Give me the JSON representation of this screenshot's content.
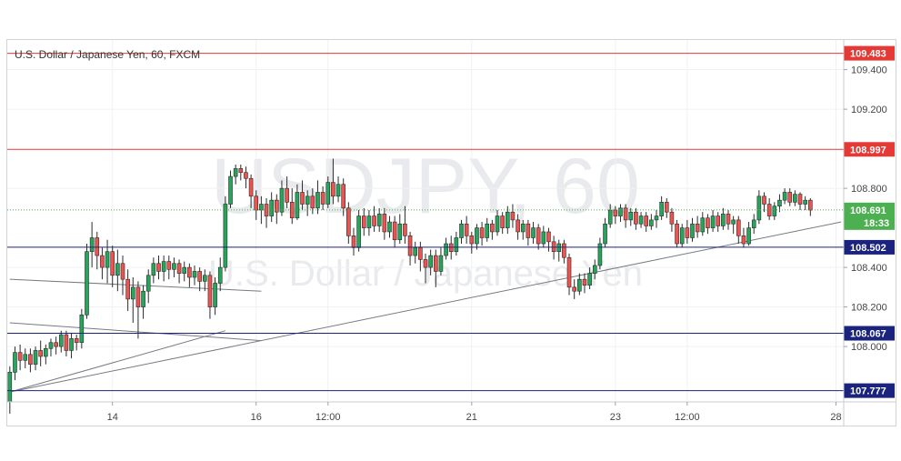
{
  "chart_data": {
    "type": "candlestick",
    "title": "U.S. Dollar / Japanese Yen, 60, FXCM",
    "watermark": {
      "symbol": "USDJPY, 60",
      "name": "U.S. Dollar / Japanese Yen"
    },
    "ylim": [
      107.72,
      109.55
    ],
    "y_ticks": [
      {
        "value": 108.0,
        "label": "108.000"
      },
      {
        "value": 108.2,
        "label": "108.200"
      },
      {
        "value": 108.4,
        "label": "108.400"
      },
      {
        "value": 108.8,
        "label": "108.800"
      },
      {
        "value": 109.2,
        "label": "109.200"
      },
      {
        "value": 109.4,
        "label": "109.400"
      }
    ],
    "x_ticks": [
      {
        "label": "14",
        "slot": 20
      },
      {
        "label": "16",
        "slot": 48
      },
      {
        "label": "12:00",
        "slot": 62
      },
      {
        "label": "21",
        "slot": 90
      },
      {
        "label": "23",
        "slot": 118
      },
      {
        "label": "12:00",
        "slot": 132
      },
      {
        "label": "28",
        "slot": 161
      }
    ],
    "slot_count": 163,
    "horizontal_levels": [
      {
        "value": 109.483,
        "label": "109.483",
        "color": "#e53935"
      },
      {
        "value": 108.997,
        "label": "108.997",
        "color": "#e53935"
      },
      {
        "value": 108.502,
        "label": "108.502",
        "color": "#1a237e"
      },
      {
        "value": 108.067,
        "label": "108.067",
        "color": "#1a237e"
      },
      {
        "value": 107.777,
        "label": "107.777",
        "color": "#1a237e"
      }
    ],
    "current_price": {
      "value": 108.691,
      "label": "108.691",
      "countdown": "18:33",
      "color": "#4caf50"
    },
    "trend_lines": [
      {
        "from": {
          "slot": 0,
          "value": 107.77
        },
        "to": {
          "slot": 162,
          "value": 108.63
        }
      },
      {
        "from": {
          "slot": 0,
          "value": 108.34
        },
        "to": {
          "slot": 49,
          "value": 108.28
        }
      },
      {
        "from": {
          "slot": 0,
          "value": 108.12
        },
        "to": {
          "slot": 49,
          "value": 108.03
        }
      },
      {
        "from": {
          "slot": 0,
          "value": 107.77
        },
        "to": {
          "slot": 42,
          "value": 108.08
        }
      }
    ],
    "candles": [
      [
        107.72,
        107.87,
        107.66,
        107.9
      ],
      [
        107.87,
        107.97,
        107.83,
        108.0
      ],
      [
        107.97,
        107.93,
        107.88,
        108.01
      ],
      [
        107.93,
        107.96,
        107.89,
        107.99
      ],
      [
        107.96,
        107.91,
        107.87,
        107.99
      ],
      [
        107.91,
        107.98,
        107.88,
        108.0
      ],
      [
        107.98,
        107.95,
        107.9,
        108.03
      ],
      [
        107.95,
        107.99,
        107.91,
        108.01
      ],
      [
        107.99,
        108.02,
        107.95,
        108.04
      ],
      [
        108.02,
        108.0,
        107.96,
        108.05
      ],
      [
        108.0,
        108.06,
        107.97,
        108.08
      ],
      [
        108.06,
        107.98,
        107.95,
        108.08
      ],
      [
        107.98,
        108.04,
        107.94,
        108.07
      ],
      [
        108.04,
        108.02,
        107.98,
        108.06
      ],
      [
        108.02,
        108.16,
        107.99,
        108.19
      ],
      [
        108.16,
        108.48,
        108.14,
        108.52
      ],
      [
        108.48,
        108.55,
        108.4,
        108.63
      ],
      [
        108.55,
        108.46,
        108.39,
        108.58
      ],
      [
        108.46,
        108.4,
        108.34,
        108.5
      ],
      [
        108.4,
        108.48,
        108.32,
        108.54
      ],
      [
        108.48,
        108.36,
        108.3,
        108.51
      ],
      [
        108.36,
        108.42,
        108.28,
        108.49
      ],
      [
        108.42,
        108.34,
        108.26,
        108.46
      ],
      [
        108.34,
        108.24,
        108.18,
        108.39
      ],
      [
        108.24,
        108.3,
        108.12,
        108.35
      ],
      [
        108.3,
        108.2,
        108.04,
        108.33
      ],
      [
        108.2,
        108.28,
        108.14,
        108.31
      ],
      [
        108.28,
        108.36,
        108.22,
        108.39
      ],
      [
        108.36,
        108.42,
        108.32,
        108.45
      ],
      [
        108.42,
        108.38,
        108.34,
        108.46
      ],
      [
        108.38,
        108.43,
        108.33,
        108.46
      ],
      [
        108.43,
        108.39,
        108.34,
        108.46
      ],
      [
        108.39,
        108.42,
        108.35,
        108.45
      ],
      [
        108.42,
        108.37,
        108.32,
        108.44
      ],
      [
        108.37,
        108.4,
        108.33,
        108.43
      ],
      [
        108.4,
        108.35,
        108.3,
        108.42
      ],
      [
        108.35,
        108.38,
        108.31,
        108.41
      ],
      [
        108.38,
        108.33,
        108.28,
        108.4
      ],
      [
        108.33,
        108.36,
        108.28,
        108.39
      ],
      [
        108.36,
        108.2,
        108.14,
        108.38
      ],
      [
        108.2,
        108.32,
        108.16,
        108.35
      ],
      [
        108.32,
        108.4,
        108.28,
        108.45
      ],
      [
        108.4,
        108.72,
        108.38,
        108.76
      ],
      [
        108.72,
        108.86,
        108.7,
        108.89
      ],
      [
        108.86,
        108.9,
        108.82,
        108.92
      ],
      [
        108.9,
        108.88,
        108.84,
        108.92
      ],
      [
        108.88,
        108.85,
        108.8,
        108.91
      ],
      [
        108.85,
        108.76,
        108.7,
        108.87
      ],
      [
        108.76,
        108.69,
        108.64,
        108.79
      ],
      [
        108.69,
        108.72,
        108.62,
        108.76
      ],
      [
        108.72,
        108.66,
        108.6,
        108.75
      ],
      [
        108.66,
        108.74,
        108.63,
        108.78
      ],
      [
        108.74,
        108.68,
        108.62,
        108.77
      ],
      [
        108.68,
        108.8,
        108.66,
        108.84
      ],
      [
        108.8,
        108.73,
        108.7,
        108.86
      ],
      [
        108.73,
        108.65,
        108.62,
        108.8
      ],
      [
        108.65,
        108.78,
        108.64,
        108.82
      ],
      [
        108.78,
        108.72,
        108.69,
        108.84
      ],
      [
        108.72,
        108.76,
        108.66,
        108.79
      ],
      [
        108.76,
        108.7,
        108.67,
        108.8
      ],
      [
        108.7,
        108.78,
        108.67,
        108.84
      ],
      [
        108.78,
        108.72,
        108.69,
        108.81
      ],
      [
        108.72,
        108.83,
        108.7,
        108.86
      ],
      [
        108.83,
        108.76,
        108.72,
        108.95
      ],
      [
        108.76,
        108.82,
        108.73,
        108.86
      ],
      [
        108.82,
        108.7,
        108.66,
        108.85
      ],
      [
        108.7,
        108.56,
        108.52,
        108.73
      ],
      [
        108.56,
        108.5,
        108.46,
        108.6
      ],
      [
        108.5,
        108.66,
        108.48,
        108.69
      ],
      [
        108.66,
        108.6,
        108.56,
        108.7
      ],
      [
        108.6,
        108.66,
        108.56,
        108.69
      ],
      [
        108.66,
        108.61,
        108.58,
        108.71
      ],
      [
        108.61,
        108.67,
        108.58,
        108.7
      ],
      [
        108.67,
        108.58,
        108.54,
        108.7
      ],
      [
        108.58,
        108.63,
        108.55,
        108.66
      ],
      [
        108.63,
        108.54,
        108.5,
        108.66
      ],
      [
        108.54,
        108.62,
        108.52,
        108.67
      ],
      [
        108.62,
        108.56,
        108.52,
        108.71
      ],
      [
        108.56,
        108.46,
        108.41,
        108.58
      ],
      [
        108.46,
        108.5,
        108.42,
        108.53
      ],
      [
        108.5,
        108.44,
        108.38,
        108.53
      ],
      [
        108.44,
        108.4,
        108.32,
        108.47
      ],
      [
        108.4,
        108.46,
        108.36,
        108.49
      ],
      [
        108.46,
        108.38,
        108.3,
        108.49
      ],
      [
        108.38,
        108.46,
        108.36,
        108.5
      ],
      [
        108.46,
        108.52,
        108.44,
        108.55
      ],
      [
        108.52,
        108.48,
        108.44,
        108.56
      ],
      [
        108.48,
        108.55,
        108.46,
        108.58
      ],
      [
        108.55,
        108.62,
        108.52,
        108.64
      ],
      [
        108.62,
        108.56,
        108.52,
        108.66
      ],
      [
        108.56,
        108.52,
        108.47,
        108.58
      ],
      [
        108.52,
        108.6,
        108.49,
        108.62
      ],
      [
        108.6,
        108.55,
        108.51,
        108.63
      ],
      [
        108.55,
        108.62,
        108.53,
        108.65
      ],
      [
        108.62,
        108.58,
        108.54,
        108.64
      ],
      [
        108.58,
        108.66,
        108.56,
        108.69
      ],
      [
        108.66,
        108.6,
        108.57,
        108.68
      ],
      [
        108.6,
        108.68,
        108.57,
        108.71
      ],
      [
        108.68,
        108.64,
        108.6,
        108.72
      ],
      [
        108.64,
        108.58,
        108.54,
        108.67
      ],
      [
        108.58,
        108.62,
        108.54,
        108.64
      ],
      [
        108.62,
        108.55,
        108.51,
        108.64
      ],
      [
        108.55,
        108.6,
        108.52,
        108.63
      ],
      [
        108.6,
        108.52,
        108.49,
        108.62
      ],
      [
        108.52,
        108.58,
        108.5,
        108.61
      ],
      [
        108.58,
        108.53,
        108.48,
        108.6
      ],
      [
        108.53,
        108.48,
        108.44,
        108.56
      ],
      [
        108.48,
        108.52,
        108.43,
        108.54
      ],
      [
        108.52,
        108.45,
        108.42,
        108.54
      ],
      [
        108.45,
        108.3,
        108.26,
        108.47
      ],
      [
        108.3,
        108.28,
        108.24,
        108.34
      ],
      [
        108.28,
        108.34,
        108.26,
        108.37
      ],
      [
        108.34,
        108.31,
        108.27,
        108.37
      ],
      [
        108.31,
        108.37,
        108.29,
        108.4
      ],
      [
        108.37,
        108.41,
        108.34,
        108.44
      ],
      [
        108.41,
        108.52,
        108.39,
        108.55
      ],
      [
        108.52,
        108.62,
        108.5,
        108.65
      ],
      [
        108.62,
        108.69,
        108.6,
        108.72
      ],
      [
        108.69,
        108.66,
        108.62,
        108.71
      ],
      [
        108.66,
        108.7,
        108.63,
        108.72
      ],
      [
        108.7,
        108.64,
        108.6,
        108.72
      ],
      [
        108.64,
        108.68,
        108.61,
        108.7
      ],
      [
        108.68,
        108.62,
        108.59,
        108.7
      ],
      [
        108.62,
        108.66,
        108.6,
        108.68
      ],
      [
        108.66,
        108.61,
        108.58,
        108.68
      ],
      [
        108.61,
        108.64,
        108.59,
        108.67
      ],
      [
        108.64,
        108.66,
        108.6,
        108.69
      ],
      [
        108.66,
        108.73,
        108.64,
        108.76
      ],
      [
        108.73,
        108.68,
        108.65,
        108.75
      ],
      [
        108.68,
        108.62,
        108.58,
        108.7
      ],
      [
        108.62,
        108.52,
        108.5,
        108.64
      ],
      [
        108.52,
        108.6,
        108.5,
        108.62
      ],
      [
        108.6,
        108.55,
        108.52,
        108.64
      ],
      [
        108.55,
        108.62,
        108.53,
        108.65
      ],
      [
        108.62,
        108.58,
        108.55,
        108.66
      ],
      [
        108.58,
        108.65,
        108.56,
        108.68
      ],
      [
        108.65,
        108.6,
        108.57,
        108.67
      ],
      [
        108.6,
        108.66,
        108.58,
        108.69
      ],
      [
        108.66,
        108.61,
        108.58,
        108.68
      ],
      [
        108.61,
        108.67,
        108.59,
        108.7
      ],
      [
        108.67,
        108.62,
        108.59,
        108.69
      ],
      [
        108.62,
        108.64,
        108.57,
        108.66
      ],
      [
        108.64,
        108.56,
        108.52,
        108.66
      ],
      [
        108.56,
        108.52,
        108.5,
        108.6
      ],
      [
        108.52,
        108.6,
        108.51,
        108.63
      ],
      [
        108.6,
        108.64,
        108.57,
        108.67
      ],
      [
        108.64,
        108.76,
        108.62,
        108.79
      ],
      [
        108.76,
        108.72,
        108.68,
        108.78
      ],
      [
        108.72,
        108.66,
        108.64,
        108.75
      ],
      [
        108.66,
        108.71,
        108.64,
        108.73
      ],
      [
        108.71,
        108.74,
        108.68,
        108.77
      ],
      [
        108.74,
        108.78,
        108.72,
        108.8
      ],
      [
        108.78,
        108.73,
        108.71,
        108.8
      ],
      [
        108.73,
        108.77,
        108.71,
        108.79
      ],
      [
        108.77,
        108.72,
        108.69,
        108.78
      ],
      [
        108.72,
        108.74,
        108.69,
        108.76
      ],
      [
        108.74,
        108.69,
        108.66,
        108.75
      ]
    ]
  }
}
